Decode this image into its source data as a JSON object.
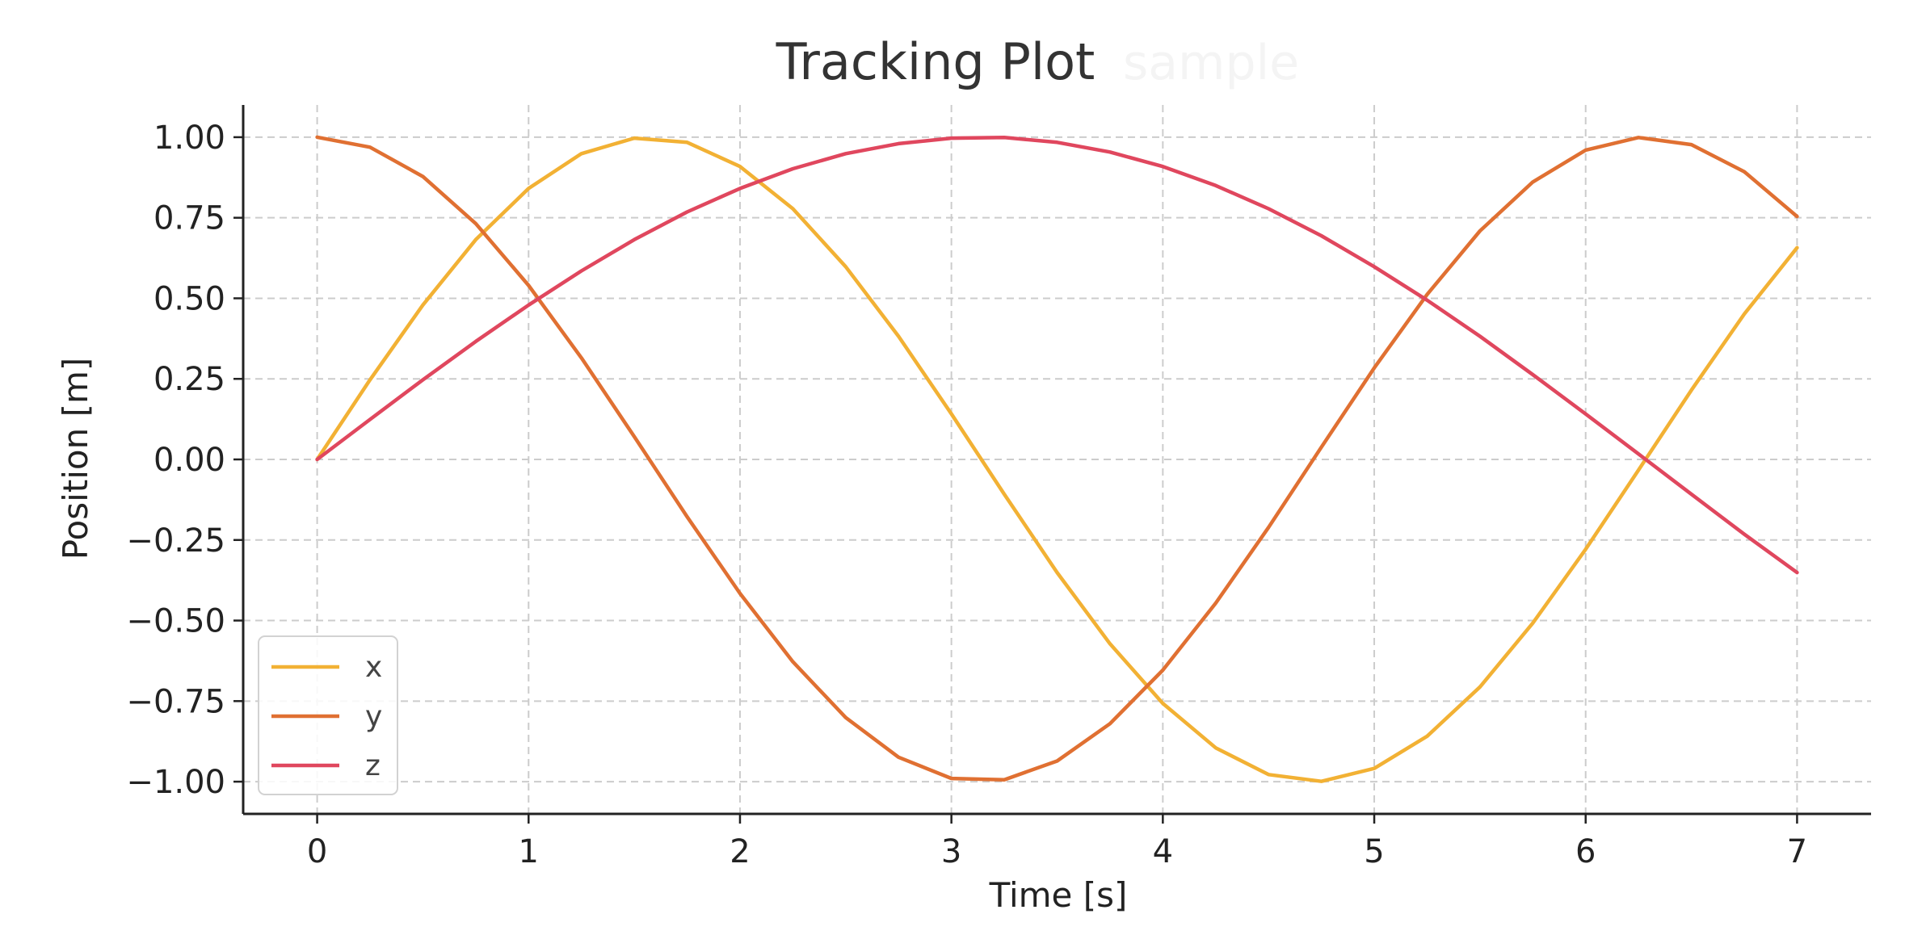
{
  "chart_data": {
    "type": "line",
    "title": "Tracking Plot",
    "xlabel": "Time [s]",
    "ylabel": "Position [m]",
    "xlim": [
      -0.35,
      7.35
    ],
    "ylim": [
      -1.1,
      1.1
    ],
    "xticks": [
      0,
      1,
      2,
      3,
      4,
      5,
      6,
      7
    ],
    "xtick_labels": [
      "0",
      "1",
      "2",
      "3",
      "4",
      "5",
      "6",
      "7"
    ],
    "yticks": [
      1.0,
      0.75,
      0.5,
      0.25,
      0.0,
      -0.25,
      -0.5,
      -0.75,
      -1.0
    ],
    "ytick_labels": [
      "1.00",
      "0.75",
      "0.50",
      "0.25",
      "0.00",
      "−0.25",
      "−0.50",
      "−0.75",
      "−1.00"
    ],
    "grid": true,
    "legend_position": "bottom-left",
    "x": [
      0,
      0.25,
      0.5,
      0.75,
      1,
      1.25,
      1.5,
      1.75,
      2,
      2.25,
      2.5,
      2.75,
      3,
      3.25,
      3.5,
      3.75,
      4,
      4.25,
      4.5,
      4.75,
      5,
      5.25,
      5.5,
      5.75,
      6,
      6.25,
      6.5,
      6.75,
      7
    ],
    "series": [
      {
        "name": "x",
        "color": "#F2B134",
        "values": [
          0,
          0.247,
          0.479,
          0.682,
          0.841,
          0.949,
          0.997,
          0.984,
          0.909,
          0.778,
          0.598,
          0.382,
          0.141,
          -0.108,
          -0.351,
          -0.572,
          -0.757,
          -0.895,
          -0.978,
          -0.999,
          -0.959,
          -0.859,
          -0.706,
          -0.508,
          -0.279,
          -0.033,
          0.215,
          0.451,
          0.657
        ]
      },
      {
        "name": "y",
        "color": "#E07032",
        "values": [
          1,
          0.969,
          0.878,
          0.732,
          0.54,
          0.315,
          0.071,
          -0.178,
          -0.416,
          -0.628,
          -0.801,
          -0.924,
          -0.99,
          -0.994,
          -0.936,
          -0.82,
          -0.654,
          -0.446,
          -0.211,
          0.038,
          0.284,
          0.512,
          0.709,
          0.861,
          0.96,
          0.999,
          0.977,
          0.893,
          0.754
        ]
      },
      {
        "name": "z",
        "color": "#E0475E",
        "values": [
          0,
          0.124,
          0.247,
          0.366,
          0.479,
          0.585,
          0.682,
          0.768,
          0.841,
          0.902,
          0.949,
          0.98,
          0.997,
          0.999,
          0.984,
          0.954,
          0.909,
          0.85,
          0.778,
          0.694,
          0.598,
          0.494,
          0.382,
          0.263,
          0.141,
          0.017,
          -0.108,
          -0.232,
          -0.351
        ]
      }
    ],
    "watermark": "sample"
  }
}
